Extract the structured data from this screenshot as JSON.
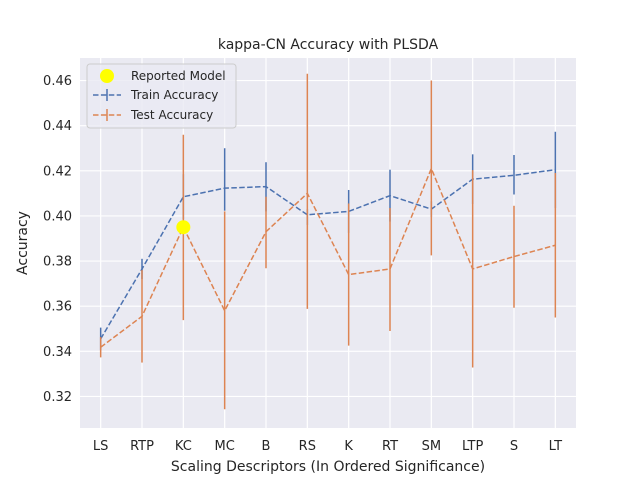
{
  "chart_data": {
    "type": "line",
    "title": "kappa-CN Accuracy with PLSDA",
    "xlabel": "Scaling Descriptors (In Ordered Significance)",
    "ylabel": "Accuracy",
    "categories": [
      "LS",
      "RTP",
      "KC",
      "MC",
      "B",
      "RS",
      "K",
      "RT",
      "SM",
      "LTP",
      "S",
      "LT"
    ],
    "ylim": [
      0.306,
      0.47
    ],
    "yticks": [
      0.32,
      0.34,
      0.36,
      0.38,
      0.4,
      0.42,
      0.44,
      0.46
    ],
    "ytick_labels": [
      "0.32",
      "0.34",
      "0.36",
      "0.38",
      "0.40",
      "0.42",
      "0.44",
      "0.46"
    ],
    "grid": true,
    "legend": {
      "position": "top-left",
      "entries": [
        "Reported Model",
        "Train Accuracy",
        "Test Accuracy"
      ]
    },
    "series": [
      {
        "name": "Train Accuracy",
        "color": "#4c72b0",
        "style": "dashed",
        "values": [
          0.3455,
          0.3765,
          0.4085,
          0.4123,
          0.413,
          0.4005,
          0.402,
          0.409,
          0.403,
          0.4163,
          0.418,
          0.4205
        ],
        "err_low": [
          0.3405,
          0.372,
          0.3985,
          0.4023,
          0.402,
          0.396,
          0.3925,
          0.3975,
          0.3995,
          0.4053,
          0.4095,
          0.4035
        ],
        "err_high": [
          0.3505,
          0.381,
          0.4185,
          0.43,
          0.4238,
          0.403,
          0.4115,
          0.4205,
          0.4065,
          0.4273,
          0.427,
          0.4373
        ]
      },
      {
        "name": "Test Accuracy",
        "color": "#dd8452",
        "style": "dashed",
        "values": [
          0.3418,
          0.3555,
          0.395,
          0.358,
          0.393,
          0.41,
          0.374,
          0.3765,
          0.421,
          0.3765,
          0.382,
          0.387
        ],
        "err_low": [
          0.3373,
          0.335,
          0.3538,
          0.3143,
          0.3768,
          0.3588,
          0.3425,
          0.349,
          0.3825,
          0.3328,
          0.3593,
          0.355
        ],
        "err_high": [
          0.3463,
          0.376,
          0.436,
          0.402,
          0.4085,
          0.463,
          0.4055,
          0.4035,
          0.46,
          0.4203,
          0.4045,
          0.419
        ]
      }
    ],
    "reported_model": {
      "name": "Reported Model",
      "category": "KC",
      "value": 0.395,
      "color": "#ffff00"
    }
  }
}
